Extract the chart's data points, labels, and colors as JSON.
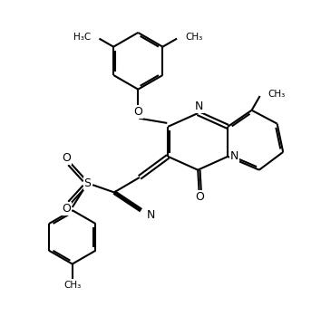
{
  "background_color": "#ffffff",
  "line_color": "#000000",
  "line_width": 1.5,
  "figsize": [
    3.54,
    3.49
  ],
  "dpi": 100,
  "xlim": [
    0.0,
    10.5
  ],
  "ylim": [
    0.5,
    11.0
  ]
}
